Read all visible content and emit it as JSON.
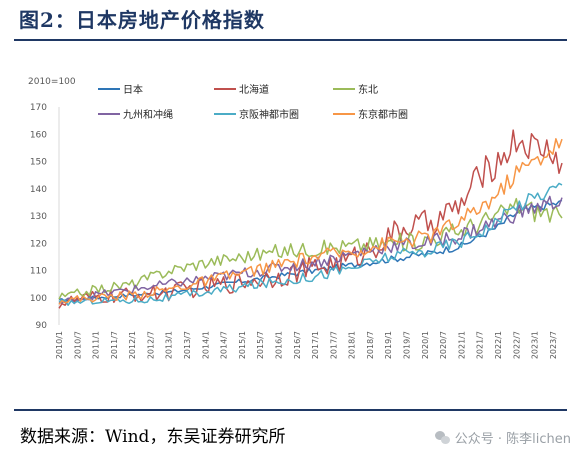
{
  "header": {
    "title": "图2：日本房地产价格指数"
  },
  "footer": {
    "source": "数据来源：Wind，东吴证券研究所",
    "watermark": "公众号 · 陈李lichen"
  },
  "colors": {
    "title": "#1f3864",
    "rule": "#1f3864"
  },
  "chart_data": {
    "type": "line",
    "unit_label": "2010=100",
    "ylim": [
      90,
      170
    ],
    "yticks": [
      90,
      100,
      110,
      120,
      130,
      140,
      150,
      160,
      170
    ],
    "x_range": [
      "2010/1",
      "2023/10"
    ],
    "xticks": [
      "2010/1",
      "2010/7",
      "2011/1",
      "2011/7",
      "2012/1",
      "2012/7",
      "2013/1",
      "2013/7",
      "2014/1",
      "2014/7",
      "2015/1",
      "2015/7",
      "2016/1",
      "2016/7",
      "2017/1",
      "2017/7",
      "2018/1",
      "2018/7",
      "2019/1",
      "2019/7",
      "2020/1",
      "2020/7",
      "2021/1",
      "2021/7",
      "2022/1",
      "2022/7",
      "2023/1",
      "2023/7"
    ],
    "legend_position": "top",
    "grid": false,
    "series": [
      {
        "name": "日本",
        "color": "#2e75b6",
        "anchors": [
          [
            "2010/1",
            99
          ],
          [
            "2011/1",
            100
          ],
          [
            "2012/1",
            101
          ],
          [
            "2013/1",
            102
          ],
          [
            "2014/1",
            104
          ],
          [
            "2015/1",
            106
          ],
          [
            "2016/1",
            108
          ],
          [
            "2017/1",
            110
          ],
          [
            "2018/1",
            112
          ],
          [
            "2019/1",
            114
          ],
          [
            "2020/1",
            116
          ],
          [
            "2021/1",
            119
          ],
          [
            "2022/1",
            126
          ],
          [
            "2022/7",
            131
          ],
          [
            "2023/1",
            133
          ],
          [
            "2023/10",
            135
          ]
        ]
      },
      {
        "name": "北海道",
        "color": "#c0504d",
        "anchors": [
          [
            "2010/1",
            98
          ],
          [
            "2011/1",
            100
          ],
          [
            "2012/1",
            101
          ],
          [
            "2013/1",
            102
          ],
          [
            "2014/1",
            104
          ],
          [
            "2015/1",
            106
          ],
          [
            "2016/1",
            108
          ],
          [
            "2017/1",
            111
          ],
          [
            "2018/1",
            114
          ],
          [
            "2019/1",
            122
          ],
          [
            "2019/7",
            126
          ],
          [
            "2020/1",
            127
          ],
          [
            "2020/7",
            130
          ],
          [
            "2021/1",
            134
          ],
          [
            "2021/7",
            145
          ],
          [
            "2022/1",
            150
          ],
          [
            "2022/7",
            158
          ],
          [
            "2023/1",
            155
          ],
          [
            "2023/7",
            154
          ],
          [
            "2023/10",
            147
          ]
        ]
      },
      {
        "name": "东北",
        "color": "#9bbb59",
        "anchors": [
          [
            "2010/1",
            100
          ],
          [
            "2011/1",
            103
          ],
          [
            "2012/1",
            105
          ],
          [
            "2013/1",
            110
          ],
          [
            "2014/1",
            113
          ],
          [
            "2015/1",
            115
          ],
          [
            "2016/1",
            117
          ],
          [
            "2017/1",
            118
          ],
          [
            "2018/1",
            119
          ],
          [
            "2019/1",
            120
          ],
          [
            "2020/1",
            121
          ],
          [
            "2021/1",
            125
          ],
          [
            "2022/1",
            130
          ],
          [
            "2022/7",
            134
          ],
          [
            "2023/1",
            132
          ],
          [
            "2023/7",
            131
          ],
          [
            "2023/10",
            128
          ]
        ]
      },
      {
        "name": "九州和冲绳",
        "color": "#8064a2",
        "anchors": [
          [
            "2010/1",
            98
          ],
          [
            "2011/1",
            101
          ],
          [
            "2012/1",
            103
          ],
          [
            "2013/1",
            105
          ],
          [
            "2014/1",
            107
          ],
          [
            "2015/1",
            109
          ],
          [
            "2016/1",
            111
          ],
          [
            "2017/1",
            113
          ],
          [
            "2018/1",
            116
          ],
          [
            "2019/1",
            119
          ],
          [
            "2020/1",
            120
          ],
          [
            "2021/1",
            123
          ],
          [
            "2022/1",
            128
          ],
          [
            "2022/7",
            131
          ],
          [
            "2023/1",
            133
          ],
          [
            "2023/10",
            136
          ]
        ]
      },
      {
        "name": "京阪神都市圈",
        "color": "#4bacc6",
        "anchors": [
          [
            "2010/1",
            98
          ],
          [
            "2011/1",
            99
          ],
          [
            "2012/1",
            99
          ],
          [
            "2013/1",
            100
          ],
          [
            "2014/1",
            102
          ],
          [
            "2015/1",
            104
          ],
          [
            "2016/1",
            106
          ],
          [
            "2017/1",
            108
          ],
          [
            "2018/1",
            111
          ],
          [
            "2019/1",
            115
          ],
          [
            "2020/1",
            117
          ],
          [
            "2021/1",
            121
          ],
          [
            "2022/1",
            128
          ],
          [
            "2022/7",
            134
          ],
          [
            "2023/1",
            137
          ],
          [
            "2023/7",
            140
          ],
          [
            "2023/10",
            141
          ]
        ]
      },
      {
        "name": "东京都市圈",
        "color": "#f79646",
        "anchors": [
          [
            "2010/1",
            99
          ],
          [
            "2011/1",
            100
          ],
          [
            "2012/1",
            101
          ],
          [
            "2013/1",
            103
          ],
          [
            "2014/1",
            106
          ],
          [
            "2015/1",
            109
          ],
          [
            "2016/1",
            112
          ],
          [
            "2017/1",
            115
          ],
          [
            "2018/1",
            117
          ],
          [
            "2019/1",
            120
          ],
          [
            "2020/1",
            122
          ],
          [
            "2021/1",
            128
          ],
          [
            "2022/1",
            138
          ],
          [
            "2022/7",
            146
          ],
          [
            "2023/1",
            150
          ],
          [
            "2023/7",
            155
          ],
          [
            "2023/10",
            158
          ]
        ]
      }
    ]
  }
}
